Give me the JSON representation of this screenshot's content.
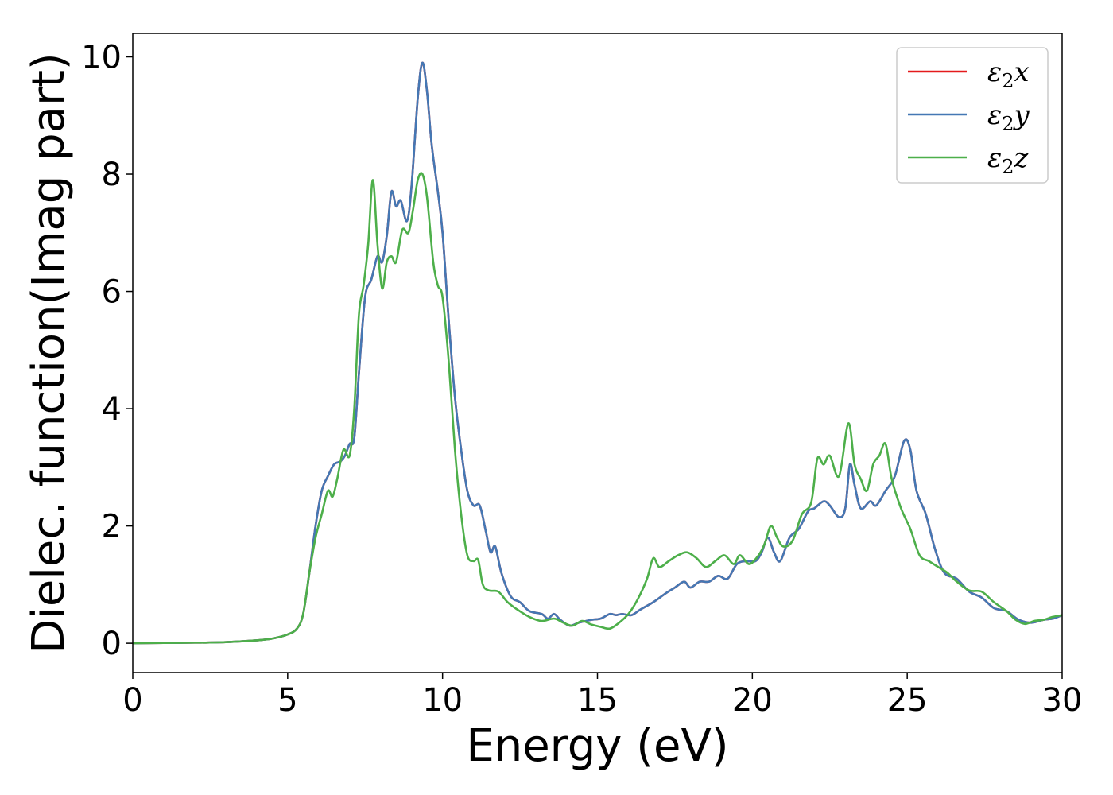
{
  "chart_data": {
    "type": "line",
    "title": "",
    "xlabel": "Energy (eV)",
    "ylabel": "Dielec. function(Imag part)",
    "xlim": [
      0,
      30
    ],
    "ylim": [
      -0.5,
      10.4
    ],
    "xticks": [
      "0",
      "5",
      "10",
      "15",
      "20",
      "25",
      "30"
    ],
    "yticks": [
      "0",
      "2",
      "4",
      "6",
      "8",
      "10"
    ],
    "grid": false,
    "legend_position": "top-right",
    "series": [
      {
        "name": "ε2x",
        "color": "#e41a1c",
        "points": [
          [
            0,
            0
          ],
          [
            1,
            0.005
          ],
          [
            2,
            0.01
          ],
          [
            3,
            0.02
          ],
          [
            4,
            0.05
          ],
          [
            4.5,
            0.08
          ],
          [
            5,
            0.15
          ],
          [
            5.3,
            0.25
          ],
          [
            5.5,
            0.5
          ],
          [
            5.7,
            1.2
          ],
          [
            5.9,
            2.0
          ],
          [
            6.1,
            2.6
          ],
          [
            6.3,
            2.85
          ],
          [
            6.5,
            3.05
          ],
          [
            6.7,
            3.1
          ],
          [
            6.85,
            3.2
          ],
          [
            7.0,
            3.4
          ],
          [
            7.15,
            3.5
          ],
          [
            7.3,
            4.6
          ],
          [
            7.5,
            5.9
          ],
          [
            7.7,
            6.2
          ],
          [
            7.9,
            6.6
          ],
          [
            8.05,
            6.5
          ],
          [
            8.2,
            6.95
          ],
          [
            8.35,
            7.7
          ],
          [
            8.5,
            7.45
          ],
          [
            8.65,
            7.55
          ],
          [
            8.85,
            7.2
          ],
          [
            9.0,
            7.8
          ],
          [
            9.2,
            9.3
          ],
          [
            9.35,
            9.9
          ],
          [
            9.5,
            9.4
          ],
          [
            9.65,
            8.5
          ],
          [
            9.85,
            7.7
          ],
          [
            10.0,
            7.0
          ],
          [
            10.2,
            5.5
          ],
          [
            10.4,
            4.2
          ],
          [
            10.6,
            3.3
          ],
          [
            10.8,
            2.6
          ],
          [
            11.0,
            2.35
          ],
          [
            11.2,
            2.35
          ],
          [
            11.4,
            1.9
          ],
          [
            11.55,
            1.55
          ],
          [
            11.7,
            1.65
          ],
          [
            11.9,
            1.2
          ],
          [
            12.2,
            0.8
          ],
          [
            12.5,
            0.7
          ],
          [
            12.8,
            0.55
          ],
          [
            13.2,
            0.5
          ],
          [
            13.4,
            0.42
          ],
          [
            13.6,
            0.5
          ],
          [
            13.8,
            0.4
          ],
          [
            14.1,
            0.3
          ],
          [
            14.4,
            0.35
          ],
          [
            14.8,
            0.4
          ],
          [
            15.1,
            0.42
          ],
          [
            15.4,
            0.5
          ],
          [
            15.6,
            0.48
          ],
          [
            15.8,
            0.5
          ],
          [
            16.1,
            0.48
          ],
          [
            16.4,
            0.58
          ],
          [
            16.8,
            0.7
          ],
          [
            17.2,
            0.85
          ],
          [
            17.5,
            0.95
          ],
          [
            17.8,
            1.05
          ],
          [
            18.0,
            0.95
          ],
          [
            18.3,
            1.05
          ],
          [
            18.6,
            1.05
          ],
          [
            18.9,
            1.15
          ],
          [
            19.2,
            1.1
          ],
          [
            19.5,
            1.35
          ],
          [
            19.8,
            1.4
          ],
          [
            20.1,
            1.4
          ],
          [
            20.3,
            1.55
          ],
          [
            20.5,
            1.8
          ],
          [
            20.7,
            1.55
          ],
          [
            20.9,
            1.4
          ],
          [
            21.2,
            1.8
          ],
          [
            21.5,
            1.95
          ],
          [
            21.8,
            2.25
          ],
          [
            22.0,
            2.3
          ],
          [
            22.3,
            2.42
          ],
          [
            22.5,
            2.35
          ],
          [
            22.8,
            2.15
          ],
          [
            23.0,
            2.3
          ],
          [
            23.15,
            3.05
          ],
          [
            23.3,
            2.7
          ],
          [
            23.5,
            2.3
          ],
          [
            23.8,
            2.42
          ],
          [
            24.0,
            2.35
          ],
          [
            24.3,
            2.6
          ],
          [
            24.6,
            2.85
          ],
          [
            24.9,
            3.45
          ],
          [
            25.1,
            3.3
          ],
          [
            25.3,
            2.6
          ],
          [
            25.6,
            2.2
          ],
          [
            25.9,
            1.6
          ],
          [
            26.2,
            1.2
          ],
          [
            26.6,
            1.1
          ],
          [
            27.0,
            0.88
          ],
          [
            27.4,
            0.78
          ],
          [
            27.8,
            0.6
          ],
          [
            28.2,
            0.55
          ],
          [
            28.6,
            0.4
          ],
          [
            29.0,
            0.35
          ],
          [
            29.4,
            0.4
          ],
          [
            29.7,
            0.42
          ],
          [
            30,
            0.48
          ]
        ]
      },
      {
        "name": "ε2y",
        "color": "#4478b4",
        "points": [
          [
            0,
            0
          ],
          [
            1,
            0.005
          ],
          [
            2,
            0.01
          ],
          [
            3,
            0.02
          ],
          [
            4,
            0.05
          ],
          [
            4.5,
            0.08
          ],
          [
            5,
            0.15
          ],
          [
            5.3,
            0.25
          ],
          [
            5.5,
            0.5
          ],
          [
            5.7,
            1.2
          ],
          [
            5.9,
            2.0
          ],
          [
            6.1,
            2.6
          ],
          [
            6.3,
            2.85
          ],
          [
            6.5,
            3.05
          ],
          [
            6.7,
            3.1
          ],
          [
            6.85,
            3.2
          ],
          [
            7.0,
            3.4
          ],
          [
            7.15,
            3.5
          ],
          [
            7.3,
            4.6
          ],
          [
            7.5,
            5.9
          ],
          [
            7.7,
            6.2
          ],
          [
            7.9,
            6.6
          ],
          [
            8.05,
            6.5
          ],
          [
            8.2,
            6.95
          ],
          [
            8.35,
            7.7
          ],
          [
            8.5,
            7.45
          ],
          [
            8.65,
            7.55
          ],
          [
            8.85,
            7.2
          ],
          [
            9.0,
            7.8
          ],
          [
            9.2,
            9.3
          ],
          [
            9.35,
            9.9
          ],
          [
            9.5,
            9.4
          ],
          [
            9.65,
            8.5
          ],
          [
            9.85,
            7.7
          ],
          [
            10.0,
            7.0
          ],
          [
            10.2,
            5.5
          ],
          [
            10.4,
            4.2
          ],
          [
            10.6,
            3.3
          ],
          [
            10.8,
            2.6
          ],
          [
            11.0,
            2.35
          ],
          [
            11.2,
            2.35
          ],
          [
            11.4,
            1.9
          ],
          [
            11.55,
            1.55
          ],
          [
            11.7,
            1.65
          ],
          [
            11.9,
            1.2
          ],
          [
            12.2,
            0.8
          ],
          [
            12.5,
            0.7
          ],
          [
            12.8,
            0.55
          ],
          [
            13.2,
            0.5
          ],
          [
            13.4,
            0.42
          ],
          [
            13.6,
            0.5
          ],
          [
            13.8,
            0.4
          ],
          [
            14.1,
            0.3
          ],
          [
            14.4,
            0.35
          ],
          [
            14.8,
            0.4
          ],
          [
            15.1,
            0.42
          ],
          [
            15.4,
            0.5
          ],
          [
            15.6,
            0.48
          ],
          [
            15.8,
            0.5
          ],
          [
            16.1,
            0.48
          ],
          [
            16.4,
            0.58
          ],
          [
            16.8,
            0.7
          ],
          [
            17.2,
            0.85
          ],
          [
            17.5,
            0.95
          ],
          [
            17.8,
            1.05
          ],
          [
            18.0,
            0.95
          ],
          [
            18.3,
            1.05
          ],
          [
            18.6,
            1.05
          ],
          [
            18.9,
            1.15
          ],
          [
            19.2,
            1.1
          ],
          [
            19.5,
            1.35
          ],
          [
            19.8,
            1.4
          ],
          [
            20.1,
            1.4
          ],
          [
            20.3,
            1.55
          ],
          [
            20.5,
            1.8
          ],
          [
            20.7,
            1.55
          ],
          [
            20.9,
            1.4
          ],
          [
            21.2,
            1.8
          ],
          [
            21.5,
            1.95
          ],
          [
            21.8,
            2.25
          ],
          [
            22.0,
            2.3
          ],
          [
            22.3,
            2.42
          ],
          [
            22.5,
            2.35
          ],
          [
            22.8,
            2.15
          ],
          [
            23.0,
            2.3
          ],
          [
            23.15,
            3.05
          ],
          [
            23.3,
            2.7
          ],
          [
            23.5,
            2.3
          ],
          [
            23.8,
            2.42
          ],
          [
            24.0,
            2.35
          ],
          [
            24.3,
            2.6
          ],
          [
            24.6,
            2.85
          ],
          [
            24.9,
            3.45
          ],
          [
            25.1,
            3.3
          ],
          [
            25.3,
            2.6
          ],
          [
            25.6,
            2.2
          ],
          [
            25.9,
            1.6
          ],
          [
            26.2,
            1.2
          ],
          [
            26.6,
            1.1
          ],
          [
            27.0,
            0.88
          ],
          [
            27.4,
            0.78
          ],
          [
            27.8,
            0.6
          ],
          [
            28.2,
            0.55
          ],
          [
            28.6,
            0.4
          ],
          [
            29.0,
            0.35
          ],
          [
            29.4,
            0.4
          ],
          [
            29.7,
            0.42
          ],
          [
            30,
            0.48
          ]
        ]
      },
      {
        "name": "ε2z",
        "color": "#4daf4a",
        "points": [
          [
            0,
            0
          ],
          [
            1,
            0.005
          ],
          [
            2,
            0.01
          ],
          [
            3,
            0.02
          ],
          [
            4,
            0.05
          ],
          [
            4.5,
            0.08
          ],
          [
            5,
            0.15
          ],
          [
            5.3,
            0.25
          ],
          [
            5.5,
            0.5
          ],
          [
            5.7,
            1.2
          ],
          [
            5.9,
            1.8
          ],
          [
            6.1,
            2.2
          ],
          [
            6.3,
            2.6
          ],
          [
            6.45,
            2.5
          ],
          [
            6.6,
            2.8
          ],
          [
            6.8,
            3.3
          ],
          [
            7.0,
            3.2
          ],
          [
            7.15,
            4.0
          ],
          [
            7.3,
            5.6
          ],
          [
            7.45,
            6.1
          ],
          [
            7.6,
            6.8
          ],
          [
            7.75,
            7.9
          ],
          [
            7.9,
            6.8
          ],
          [
            8.05,
            6.05
          ],
          [
            8.2,
            6.5
          ],
          [
            8.35,
            6.6
          ],
          [
            8.5,
            6.5
          ],
          [
            8.7,
            7.05
          ],
          [
            8.9,
            7.0
          ],
          [
            9.05,
            7.4
          ],
          [
            9.2,
            7.9
          ],
          [
            9.35,
            8.0
          ],
          [
            9.5,
            7.6
          ],
          [
            9.7,
            6.5
          ],
          [
            9.85,
            6.1
          ],
          [
            10.0,
            5.9
          ],
          [
            10.2,
            4.8
          ],
          [
            10.4,
            3.3
          ],
          [
            10.6,
            2.2
          ],
          [
            10.8,
            1.5
          ],
          [
            11.0,
            1.4
          ],
          [
            11.15,
            1.42
          ],
          [
            11.3,
            1.0
          ],
          [
            11.5,
            0.9
          ],
          [
            11.8,
            0.88
          ],
          [
            12.1,
            0.7
          ],
          [
            12.4,
            0.58
          ],
          [
            12.8,
            0.45
          ],
          [
            13.2,
            0.38
          ],
          [
            13.6,
            0.42
          ],
          [
            13.9,
            0.35
          ],
          [
            14.2,
            0.3
          ],
          [
            14.5,
            0.38
          ],
          [
            14.8,
            0.32
          ],
          [
            15.1,
            0.28
          ],
          [
            15.4,
            0.25
          ],
          [
            15.7,
            0.35
          ],
          [
            16.0,
            0.5
          ],
          [
            16.3,
            0.75
          ],
          [
            16.6,
            1.1
          ],
          [
            16.8,
            1.45
          ],
          [
            17.0,
            1.3
          ],
          [
            17.3,
            1.4
          ],
          [
            17.6,
            1.5
          ],
          [
            17.9,
            1.55
          ],
          [
            18.2,
            1.45
          ],
          [
            18.5,
            1.3
          ],
          [
            18.8,
            1.4
          ],
          [
            19.1,
            1.5
          ],
          [
            19.4,
            1.35
          ],
          [
            19.6,
            1.5
          ],
          [
            19.9,
            1.35
          ],
          [
            20.2,
            1.5
          ],
          [
            20.4,
            1.7
          ],
          [
            20.6,
            2.0
          ],
          [
            20.8,
            1.8
          ],
          [
            21.0,
            1.65
          ],
          [
            21.3,
            1.75
          ],
          [
            21.6,
            2.2
          ],
          [
            21.9,
            2.4
          ],
          [
            22.1,
            3.15
          ],
          [
            22.3,
            3.05
          ],
          [
            22.5,
            3.2
          ],
          [
            22.8,
            2.85
          ],
          [
            23.1,
            3.75
          ],
          [
            23.3,
            3.05
          ],
          [
            23.5,
            2.8
          ],
          [
            23.7,
            2.6
          ],
          [
            23.9,
            3.05
          ],
          [
            24.1,
            3.2
          ],
          [
            24.3,
            3.4
          ],
          [
            24.5,
            2.8
          ],
          [
            24.8,
            2.3
          ],
          [
            25.1,
            1.95
          ],
          [
            25.4,
            1.5
          ],
          [
            25.7,
            1.4
          ],
          [
            26.0,
            1.3
          ],
          [
            26.3,
            1.2
          ],
          [
            26.6,
            1.05
          ],
          [
            27.0,
            0.9
          ],
          [
            27.4,
            0.88
          ],
          [
            27.8,
            0.7
          ],
          [
            28.2,
            0.55
          ],
          [
            28.5,
            0.4
          ],
          [
            28.8,
            0.33
          ],
          [
            29.1,
            0.38
          ],
          [
            29.4,
            0.4
          ],
          [
            29.7,
            0.45
          ],
          [
            30,
            0.48
          ]
        ]
      }
    ]
  }
}
